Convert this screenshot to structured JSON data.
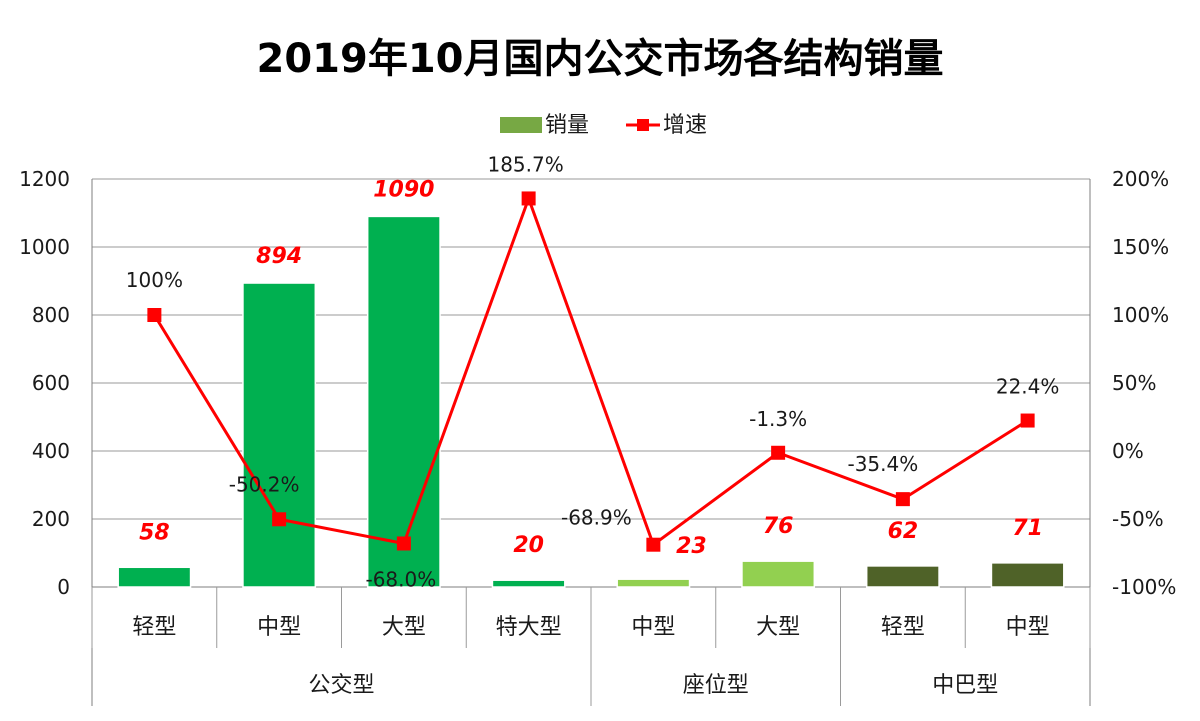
{
  "chart_data": {
    "type": "bar+line",
    "title": "2019年10月国内公交市场各结构销量",
    "categories": [
      "轻型",
      "中型",
      "大型",
      "特大型",
      "中型",
      "大型",
      "轻型",
      "中型"
    ],
    "groups": [
      {
        "label": "公交型",
        "count": 4
      },
      {
        "label": "座位型",
        "count": 2
      },
      {
        "label": "中巴型",
        "count": 2
      }
    ],
    "series": [
      {
        "name": "销量",
        "kind": "bar",
        "axis": "left",
        "values": [
          58,
          894,
          1090,
          20,
          23,
          76,
          62,
          71
        ],
        "value_labels": [
          "58",
          "894",
          "1090",
          "20",
          "23",
          "76",
          "62",
          "71"
        ],
        "colors": [
          "#00b050",
          "#00b050",
          "#00b050",
          "#00b050",
          "#92d050",
          "#92d050",
          "#4f6228",
          "#4f6228"
        ],
        "label_color": "#ff0000"
      },
      {
        "name": "增速",
        "kind": "line",
        "axis": "right",
        "values": [
          100,
          -50.2,
          -68.0,
          185.7,
          -68.9,
          -1.3,
          -35.4,
          22.4
        ],
        "value_labels": [
          "100%",
          "-50.2%",
          "-68.0%",
          "185.7%",
          "-68.9%",
          "-1.3%",
          "-35.4%",
          "22.4%"
        ],
        "color": "#ff0000"
      }
    ],
    "y_left": {
      "min": 0,
      "max": 1200,
      "step": 200,
      "ticks": [
        "0",
        "200",
        "400",
        "600",
        "800",
        "1000",
        "1200"
      ]
    },
    "y_right": {
      "min": -100,
      "max": 200,
      "step": 50,
      "ticks": [
        "-100%",
        "-50%",
        "0%",
        "50%",
        "100%",
        "150%",
        "200%"
      ]
    },
    "legend": {
      "position": "top",
      "items": [
        "销量",
        "增速"
      ],
      "bar_swatch_color": "#77a844"
    },
    "grid": true
  }
}
